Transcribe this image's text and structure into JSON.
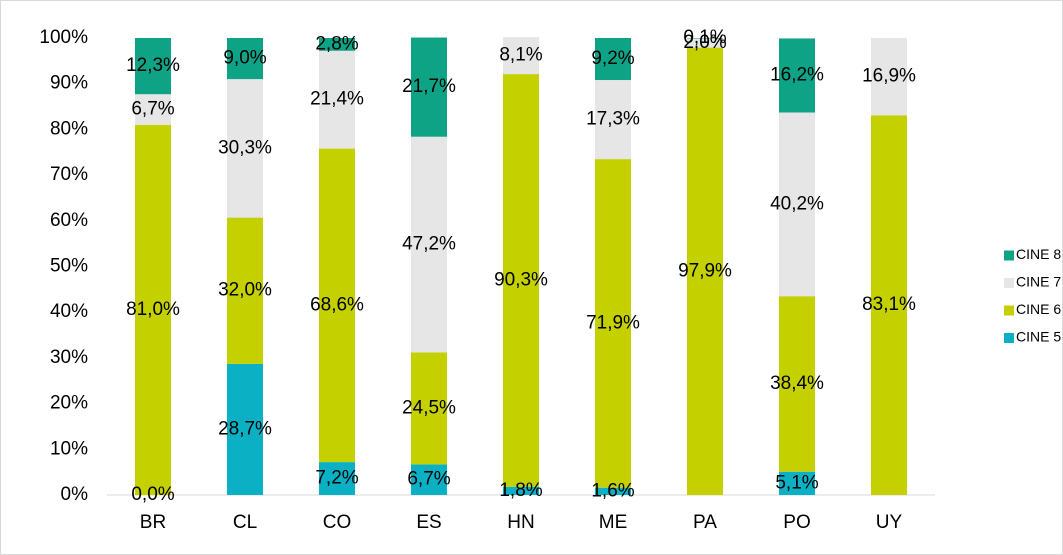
{
  "chart_data": {
    "type": "stacked_bar",
    "categories": [
      "BR",
      "CL",
      "CO",
      "ES",
      "HN",
      "ME",
      "PA",
      "PO",
      "UY"
    ],
    "series": [
      {
        "name": "CINE 5",
        "color": "#0bb0c4",
        "values": [
          0.0,
          28.7,
          7.2,
          6.7,
          1.8,
          1.6,
          null,
          5.1,
          null
        ],
        "value_labels": [
          "0,0%",
          "28,7%",
          "7,2%",
          "6,7%",
          "1,8%",
          "1,6%",
          null,
          "5,1%",
          null
        ]
      },
      {
        "name": "CINE 6",
        "color": "#c4d000",
        "values": [
          81.0,
          32.0,
          68.6,
          24.5,
          90.3,
          71.9,
          97.9,
          38.4,
          83.1
        ],
        "value_labels": [
          "81,0%",
          "32,0%",
          "68,6%",
          "24,5%",
          "90,3%",
          "71,9%",
          "97,9%",
          "38,4%",
          "83,1%"
        ]
      },
      {
        "name": "CINE 7",
        "color": "#e6e6e6",
        "values": [
          6.7,
          30.3,
          21.4,
          47.2,
          8.1,
          17.3,
          2.0,
          40.2,
          16.9
        ],
        "value_labels": [
          "6,7%",
          "30,3%",
          "21,4%",
          "47,2%",
          "8,1%",
          "17,3%",
          "2,0%",
          "40,2%",
          "16,9%"
        ]
      },
      {
        "name": "CINE 8",
        "color": "#0fa386",
        "values": [
          12.3,
          9.0,
          2.8,
          21.7,
          null,
          9.2,
          0.1,
          16.2,
          null
        ],
        "value_labels": [
          "12,3%",
          "9,0%",
          "2,8%",
          "21,7%",
          null,
          "9,2%",
          "0,1%",
          "16,2%",
          null
        ]
      }
    ],
    "ylim": [
      0,
      100
    ],
    "yticks": [
      {
        "value": 0,
        "label": "0%"
      },
      {
        "value": 10,
        "label": "10%"
      },
      {
        "value": 20,
        "label": "20%"
      },
      {
        "value": 30,
        "label": "30%"
      },
      {
        "value": 40,
        "label": "40%"
      },
      {
        "value": 50,
        "label": "50%"
      },
      {
        "value": 60,
        "label": "60%"
      },
      {
        "value": 70,
        "label": "70%"
      },
      {
        "value": 80,
        "label": "80%"
      },
      {
        "value": 90,
        "label": "90%"
      },
      {
        "value": 100,
        "label": "100%"
      }
    ],
    "legend": "right"
  }
}
